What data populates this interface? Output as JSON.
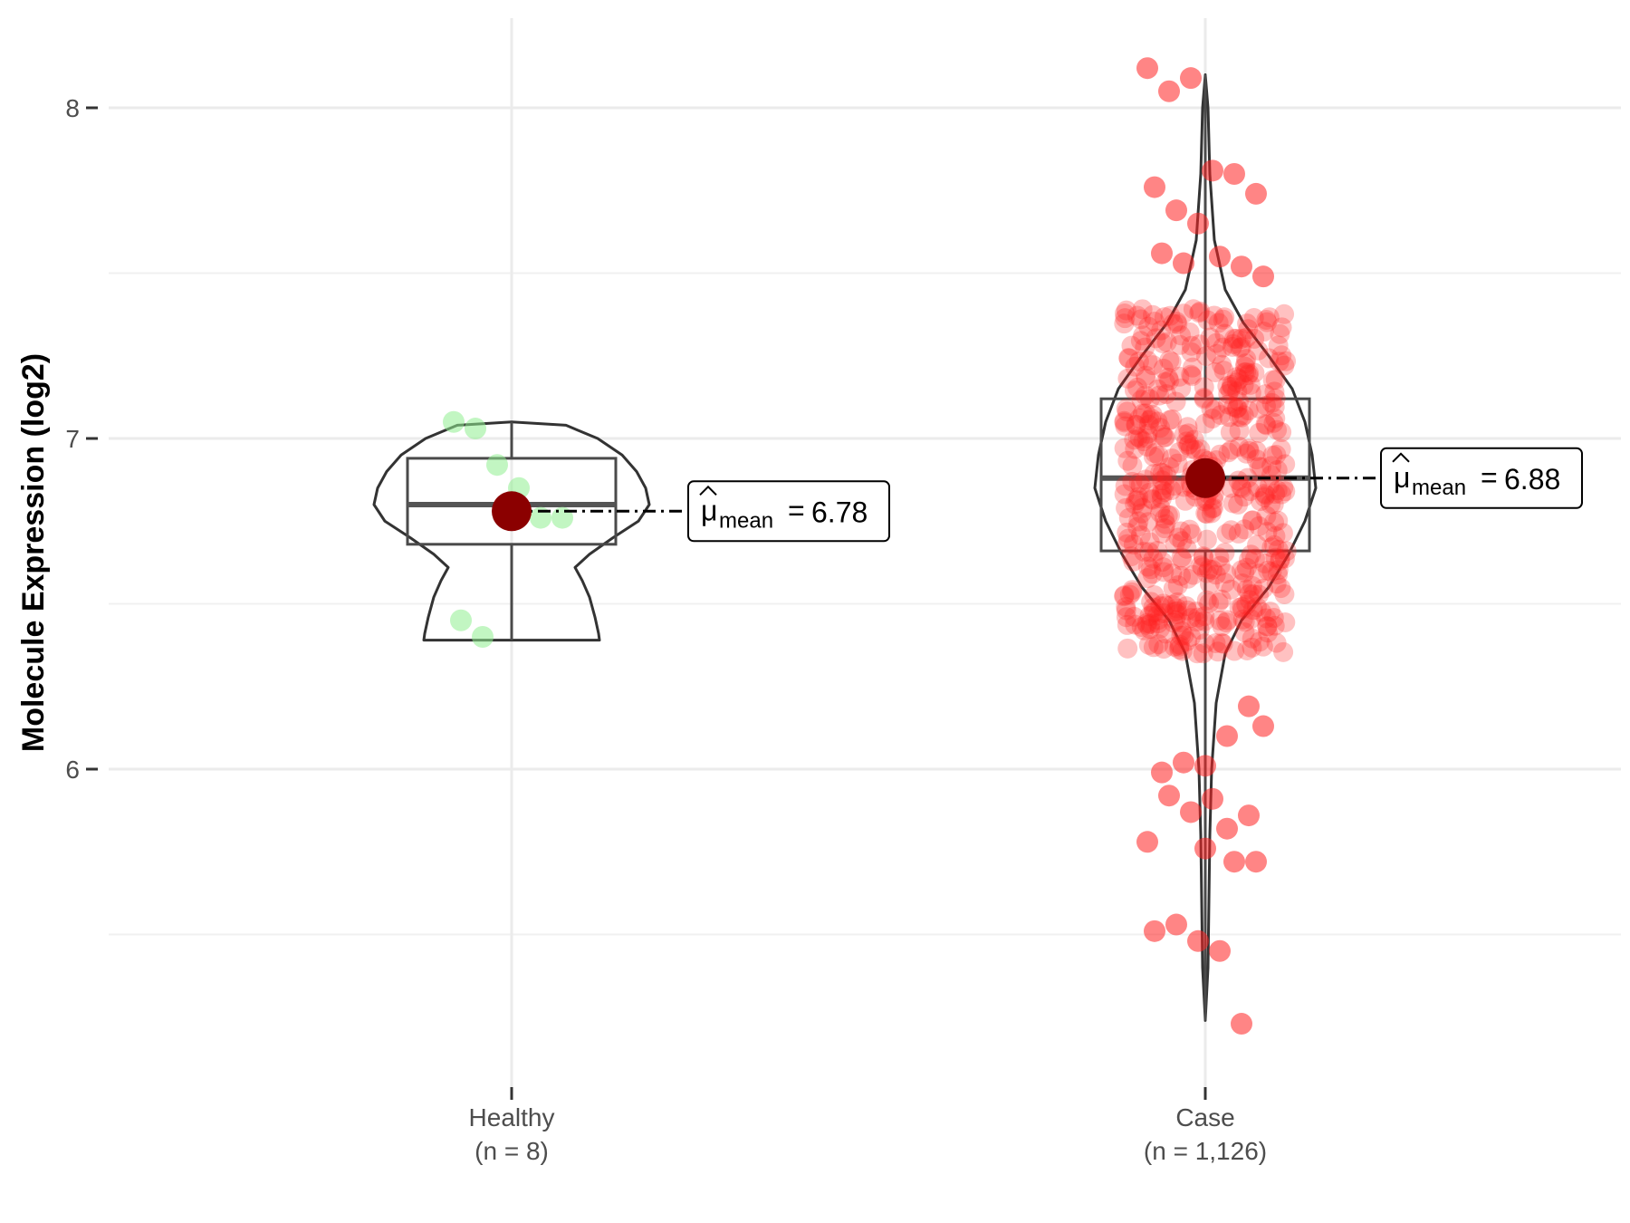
{
  "chart_data": {
    "type": "violin",
    "ylabel": "Molecule Expression (log2)",
    "ylim": [
      5.1,
      8.3
    ],
    "yticks": [
      6,
      7,
      8
    ],
    "grid": true,
    "legend": "none",
    "groups": [
      {
        "name": "Healthy",
        "count_label": "(n = 8)",
        "color": "#90ee90",
        "stats": {
          "min": 6.39,
          "q1": 6.68,
          "median": 6.8,
          "q3": 6.94,
          "max": 7.05,
          "mean": 6.78
        },
        "mean_label": "6.78",
        "points": [
          7.05,
          7.03,
          6.92,
          6.85,
          6.76,
          6.76,
          6.45,
          6.4
        ]
      },
      {
        "name": "Case",
        "count_label": "(n = 1,126)",
        "color": "#ff2020",
        "stats": {
          "min": 5.24,
          "q1": 6.66,
          "median": 6.88,
          "q3": 7.12,
          "max": 8.1,
          "mean": 6.88
        },
        "mean_label": "6.88",
        "points": [
          8.12,
          8.05,
          8.09,
          7.81,
          7.8,
          7.74,
          7.76,
          7.69,
          7.65,
          7.55,
          7.52,
          7.49,
          7.56,
          7.53,
          5.76,
          5.82,
          5.86,
          5.78,
          5.92,
          5.87,
          5.91,
          5.72,
          5.72,
          5.51,
          5.53,
          5.48,
          5.45,
          5.23,
          6.13,
          5.99,
          6.02,
          6.01,
          6.1,
          6.19
        ]
      }
    ],
    "mean_symbol": "μ",
    "mean_subscript": "mean",
    "mean_equals": "="
  }
}
